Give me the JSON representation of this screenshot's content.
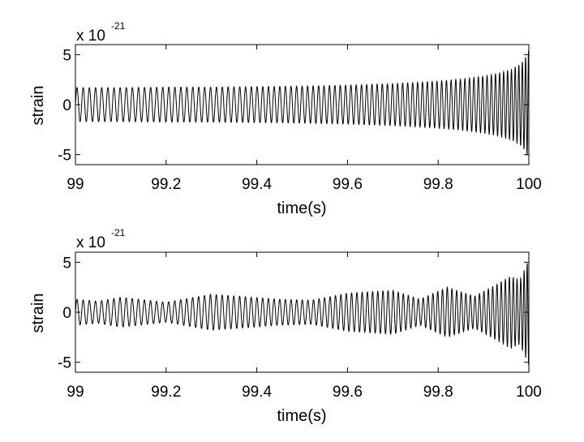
{
  "chart_data": [
    {
      "type": "line",
      "title": "",
      "xlabel": "time(s)",
      "ylabel": "strain",
      "xlim": [
        99,
        100
      ],
      "ylim": [
        -6,
        6
      ],
      "y_multiplier": {
        "base": "x 10",
        "exponent": "-21"
      },
      "xticks": [
        99,
        99.2,
        99.4,
        99.6,
        99.8,
        100
      ],
      "xtick_labels": [
        "99",
        "99.2",
        "99.4",
        "99.6",
        "99.8",
        "100"
      ],
      "yticks": [
        -5,
        0,
        5
      ],
      "ytick_labels": [
        "-5",
        "0",
        "5"
      ],
      "grid": false,
      "series": [
        {
          "color": "#000000",
          "x": [
            99.0,
            99.1,
            99.2,
            99.3,
            99.4,
            99.5,
            99.6,
            99.7,
            99.8,
            99.85,
            99.9,
            99.93,
            99.96,
            99.98,
            99.99,
            100.0
          ],
          "envelope": [
            1.7,
            1.7,
            1.75,
            1.75,
            1.8,
            1.85,
            1.95,
            2.1,
            2.35,
            2.55,
            2.85,
            3.1,
            3.5,
            4.0,
            4.5,
            5.4
          ],
          "frequency_hz": [
            73,
            74,
            75,
            77,
            79,
            82,
            85,
            89,
            95,
            99,
            104,
            110,
            118,
            128,
            140,
            160
          ]
        }
      ]
    },
    {
      "type": "line",
      "title": "",
      "xlabel": "time(s)",
      "ylabel": "strain",
      "xlim": [
        99,
        100
      ],
      "ylim": [
        -6,
        6
      ],
      "y_multiplier": {
        "base": "x 10",
        "exponent": "-21"
      },
      "xticks": [
        99,
        99.2,
        99.4,
        99.6,
        99.8,
        100
      ],
      "xtick_labels": [
        "99",
        "99.2",
        "99.4",
        "99.6",
        "99.8",
        "100"
      ],
      "yticks": [
        -5,
        0,
        5
      ],
      "ytick_labels": [
        "-5",
        "0",
        "5"
      ],
      "grid": false,
      "series": [
        {
          "color": "#000000",
          "x": [
            99.0,
            99.05,
            99.1,
            99.2,
            99.3,
            99.45,
            99.52,
            99.6,
            99.7,
            99.76,
            99.82,
            99.88,
            99.93,
            99.96,
            99.98,
            99.99,
            100.0
          ],
          "envelope": [
            1.3,
            1.1,
            1.5,
            1.0,
            1.8,
            1.3,
            1.2,
            1.9,
            2.2,
            1.3,
            2.5,
            1.6,
            2.8,
            3.6,
            3.2,
            4.2,
            5.3
          ],
          "frequency_hz": [
            73,
            74,
            74,
            75,
            77,
            80,
            81,
            85,
            89,
            92,
            96,
            100,
            106,
            115,
            125,
            140,
            160
          ]
        }
      ]
    }
  ]
}
